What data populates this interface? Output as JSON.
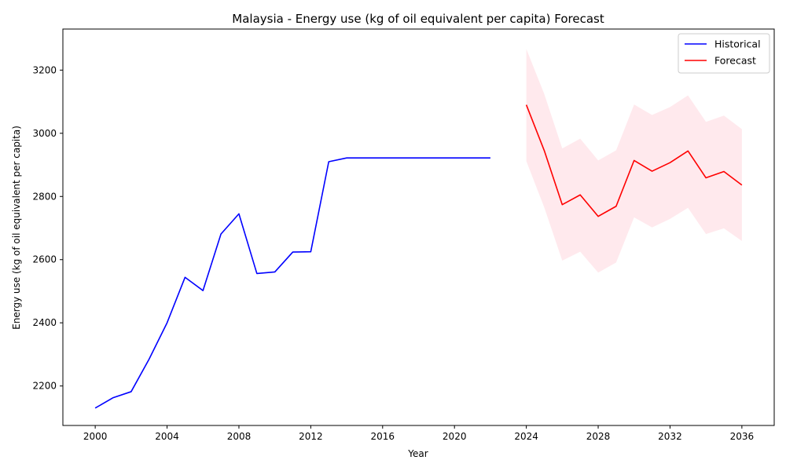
{
  "chart_data": {
    "type": "line",
    "title": "Malaysia - Energy use (kg of oil equivalent per capita) Forecast",
    "xlabel": "Year",
    "ylabel": "Energy use (kg of oil equivalent per capita)",
    "xlim": [
      1998.2,
      2037.8
    ],
    "ylim": [
      2075,
      3330
    ],
    "x_ticks": [
      2000,
      2004,
      2008,
      2012,
      2016,
      2020,
      2024,
      2028,
      2032,
      2036
    ],
    "y_ticks": [
      2200,
      2400,
      2600,
      2800,
      3000,
      3200
    ],
    "grid": false,
    "legend_position": "top-right",
    "series": [
      {
        "name": "Historical",
        "color": "#0000ff",
        "x": [
          2000,
          2001,
          2002,
          2003,
          2004,
          2005,
          2006,
          2007,
          2008,
          2009,
          2010,
          2011,
          2012,
          2013,
          2014,
          2015,
          2016,
          2017,
          2018,
          2019,
          2020,
          2021,
          2022
        ],
        "values": [
          2130,
          2163,
          2182,
          2285,
          2400,
          2544,
          2502,
          2681,
          2745,
          2556,
          2561,
          2624,
          2625,
          2910,
          2922,
          2922,
          2922,
          2922,
          2922,
          2922,
          2922,
          2922,
          2922
        ]
      },
      {
        "name": "Forecast",
        "color": "#ff0000",
        "x": [
          2024,
          2025,
          2026,
          2027,
          2028,
          2029,
          2030,
          2031,
          2032,
          2033,
          2034,
          2035,
          2036
        ],
        "values": [
          3090,
          2945,
          2774,
          2805,
          2737,
          2769,
          2914,
          2880,
          2907,
          2944,
          2859,
          2879,
          2836
        ],
        "lower": [
          2912,
          2765,
          2597,
          2625,
          2559,
          2591,
          2734,
          2702,
          2729,
          2764,
          2681,
          2699,
          2659
        ],
        "upper": [
          3267,
          3124,
          2952,
          2983,
          2914,
          2946,
          3091,
          3058,
          3083,
          3120,
          3036,
          3056,
          3013
        ],
        "band_color": "#ffc0cb"
      }
    ]
  }
}
